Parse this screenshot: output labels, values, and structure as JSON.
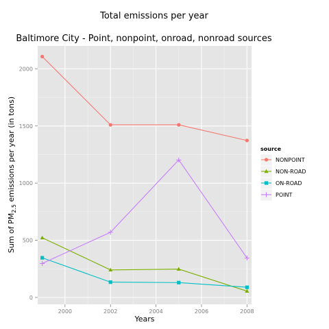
{
  "chart_data": {
    "type": "line",
    "title": "Total emissions per year",
    "subtitle": "Baltimore City - Point, nonpoint, onroad, nonroad sources",
    "xlabel": "Years",
    "ylabel_prefix": "Sum of PM",
    "ylabel_subscript": "2.5",
    "ylabel_suffix": " emissions per year (in tons)",
    "x": [
      1999,
      2002,
      2005,
      2008
    ],
    "xlim": [
      1998.8,
      2008.2
    ],
    "ylim": [
      -60,
      2200
    ],
    "x_ticks": [
      2000,
      2002,
      2004,
      2006,
      2008
    ],
    "y_ticks": [
      0,
      500,
      1000,
      1500,
      2000
    ],
    "grid": true,
    "legend_title": "source",
    "legend_position": "right",
    "series": [
      {
        "name": "NONPOINT",
        "color": "#f8766d",
        "marker": "circle",
        "values": [
          2107,
          1510,
          1510,
          1373
        ]
      },
      {
        "name": "NON-ROAD",
        "color": "#7cae00",
        "marker": "triangle",
        "values": [
          522,
          241,
          248,
          55
        ]
      },
      {
        "name": "ON-ROAD",
        "color": "#00bfc4",
        "marker": "square",
        "values": [
          347,
          134,
          130,
          89
        ]
      },
      {
        "name": "POINT",
        "color": "#c77cff",
        "marker": "plus",
        "values": [
          297,
          570,
          1203,
          345
        ]
      }
    ]
  }
}
